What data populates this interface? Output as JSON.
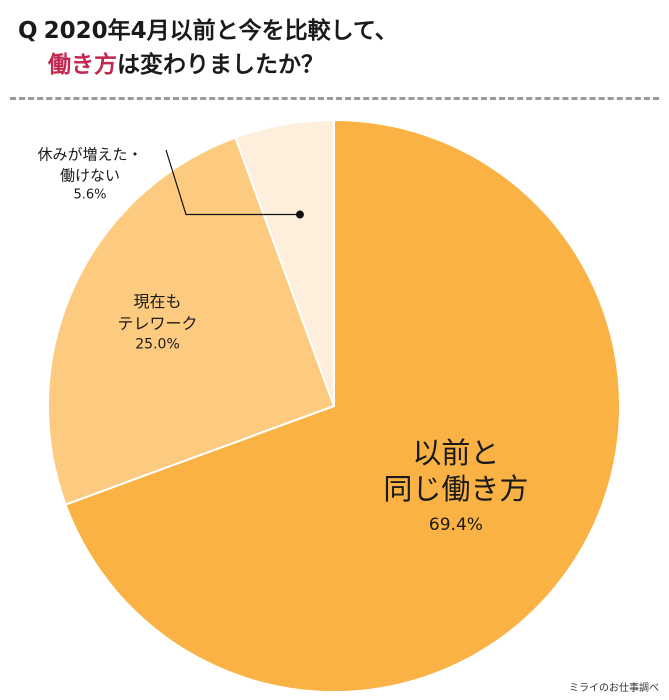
{
  "title": {
    "q_mark": "Q",
    "line1": "2020年4月以前と今を比較して、",
    "line2_accent": "働き方",
    "line2_rest": "は変わりましたか？"
  },
  "source": "ミライのお仕事調べ",
  "colors": {
    "accent": "#c2274f",
    "divider": "#9a9a9a"
  },
  "chart_data": {
    "type": "pie",
    "title": "",
    "slices": [
      {
        "label_lines": [
          "以前と",
          "同じ働き方"
        ],
        "value": 69.4,
        "value_label": "69.4%",
        "color": "#f9b243"
      },
      {
        "label_lines": [
          "現在も",
          "テレワーク"
        ],
        "value": 25.0,
        "value_label": "25.0%",
        "color": "#fccb80"
      },
      {
        "label_lines": [
          "休みが増えた・",
          "働けない"
        ],
        "value": 5.6,
        "value_label": "5.6%",
        "color": "#fdefdb"
      }
    ]
  }
}
